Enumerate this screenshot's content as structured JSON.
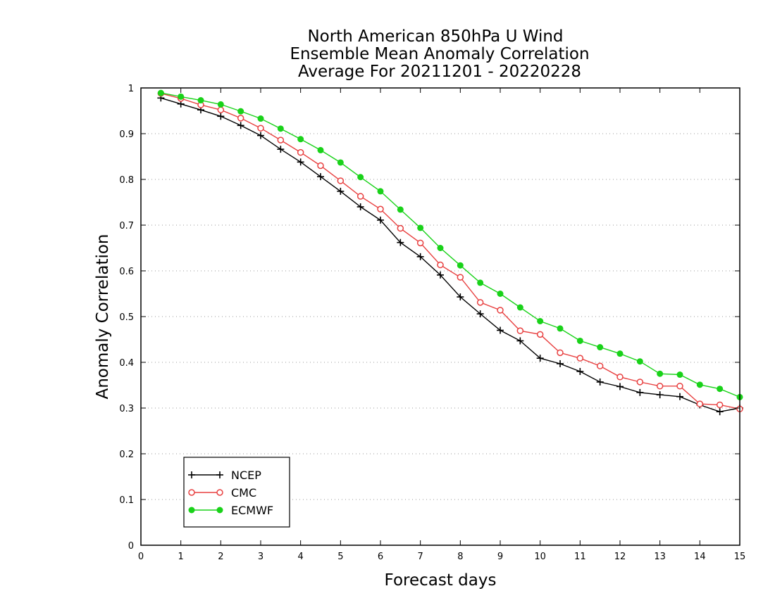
{
  "chart_data": {
    "type": "line",
    "title": [
      "North American 850hPa U Wind",
      "Ensemble Mean Anomaly Correlation",
      "Average For 20211201 - 20220228"
    ],
    "xlabel": "Forecast days",
    "ylabel": "Anomaly Correlation",
    "xlim": [
      0,
      15
    ],
    "ylim": [
      0,
      1
    ],
    "xticks": [
      0,
      1,
      2,
      3,
      4,
      5,
      6,
      7,
      8,
      9,
      10,
      11,
      12,
      13,
      14,
      15
    ],
    "xtick_labels": [
      "0",
      "1",
      "2",
      "3",
      "4",
      "5",
      "6",
      "7",
      "8",
      "9",
      "10",
      "11",
      "12",
      "13",
      "14",
      "15"
    ],
    "yticks": [
      0,
      0.1,
      0.2,
      0.3,
      0.4,
      0.5,
      0.6,
      0.7,
      0.8,
      0.9,
      1
    ],
    "ytick_labels": [
      "0",
      "0.1",
      "0.2",
      "0.3",
      "0.4",
      "0.5",
      "0.6",
      "0.7",
      "0.8",
      "0.9",
      "1"
    ],
    "grid": "horizontal-dotted",
    "legend_position": "bottom-left",
    "x": [
      0.5,
      1,
      1.5,
      2,
      2.5,
      3,
      3.5,
      4,
      4.5,
      5,
      5.5,
      6,
      6.5,
      7,
      7.5,
      8,
      8.5,
      9,
      9.5,
      10,
      10.5,
      11,
      11.5,
      12,
      12.5,
      13,
      13.5,
      14,
      14.5,
      15
    ],
    "series": [
      {
        "name": "NCEP",
        "color": "#000000",
        "marker": "plus",
        "values": [
          0.978,
          0.965,
          0.952,
          0.938,
          0.918,
          0.896,
          0.866,
          0.838,
          0.806,
          0.774,
          0.74,
          0.711,
          0.662,
          0.631,
          0.591,
          0.543,
          0.506,
          0.47,
          0.447,
          0.409,
          0.397,
          0.38,
          0.357,
          0.347,
          0.334,
          0.329,
          0.325,
          0.307,
          0.292,
          0.3
        ]
      },
      {
        "name": "CMC",
        "color": "#e84040",
        "marker": "open-circle",
        "values": [
          0.988,
          0.977,
          0.963,
          0.952,
          0.934,
          0.912,
          0.886,
          0.859,
          0.83,
          0.797,
          0.763,
          0.735,
          0.693,
          0.661,
          0.613,
          0.586,
          0.531,
          0.514,
          0.469,
          0.461,
          0.421,
          0.409,
          0.392,
          0.368,
          0.357,
          0.348,
          0.348,
          0.309,
          0.307,
          0.298
        ]
      },
      {
        "name": "ECMWF",
        "color": "#19d219",
        "marker": "filled-circle",
        "values": [
          0.989,
          0.981,
          0.973,
          0.964,
          0.949,
          0.933,
          0.911,
          0.888,
          0.864,
          0.837,
          0.805,
          0.774,
          0.734,
          0.694,
          0.65,
          0.612,
          0.574,
          0.55,
          0.52,
          0.49,
          0.474,
          0.447,
          0.433,
          0.419,
          0.402,
          0.375,
          0.373,
          0.351,
          0.342,
          0.324
        ]
      }
    ]
  }
}
